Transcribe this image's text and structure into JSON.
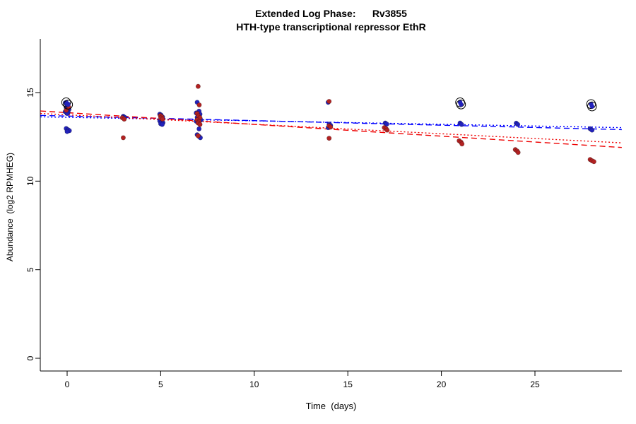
{
  "title": {
    "main": "Extended Log Phase:      Rv3855",
    "subtitle": "HTH-type transcriptional repressor EthR"
  },
  "axes": {
    "x_label": "Time  (days)",
    "y_label": "Abundance  (log2 RPMHEG)"
  },
  "chart_data": {
    "type": "scatter",
    "title": "Extended Log Phase: Rv3855",
    "subtitle": "HTH-type transcriptional repressor EthR",
    "xlabel": "Time (days)",
    "ylabel": "Abundance (log2 RPMHEG)",
    "xlim": [
      -1.43,
      29.64
    ],
    "ylim": [
      -0.72,
      18.03
    ],
    "x_ticks": [
      0,
      5,
      10,
      15,
      20,
      25
    ],
    "y_ticks": [
      0,
      5,
      10,
      15
    ],
    "grid": false,
    "legend": "none",
    "point_colors": {
      "blue": "#2222bb",
      "red": "#b22222"
    },
    "line_colors": {
      "blue": "#0000ff",
      "red": "#ee0000"
    },
    "series": [
      {
        "name": "blue",
        "color": "#2222bb",
        "points": [
          [
            -0.1,
            14.42
          ],
          [
            0.05,
            14.35
          ],
          [
            0,
            14.25
          ],
          [
            -0.05,
            14.15
          ],
          [
            0.1,
            14.05
          ],
          [
            0,
            13.98
          ],
          [
            -0.1,
            13.92
          ],
          [
            0.05,
            13.88
          ],
          [
            0,
            13.82
          ],
          [
            -0.05,
            12.97
          ],
          [
            0.05,
            12.9
          ],
          [
            0.12,
            12.85
          ],
          [
            0,
            12.8
          ],
          [
            3,
            13.66
          ],
          [
            3.08,
            13.6
          ],
          [
            4.95,
            13.78
          ],
          [
            5.02,
            13.73
          ],
          [
            5.1,
            13.62
          ],
          [
            4.95,
            13.4
          ],
          [
            5.05,
            13.34
          ],
          [
            5.12,
            13.3
          ],
          [
            5,
            13.24
          ],
          [
            5.08,
            13.2
          ],
          [
            6.95,
            14.45
          ],
          [
            7.05,
            13.95
          ],
          [
            6.9,
            13.85
          ],
          [
            7.1,
            13.78
          ],
          [
            7,
            13.7
          ],
          [
            6.95,
            13.6
          ],
          [
            7.08,
            13.52
          ],
          [
            7.15,
            13.45
          ],
          [
            6.9,
            13.38
          ],
          [
            7,
            13.3
          ],
          [
            7.05,
            12.95
          ],
          [
            6.95,
            12.62
          ],
          [
            7.05,
            12.52
          ],
          [
            7.12,
            12.45
          ],
          [
            13.95,
            14.45
          ],
          [
            14,
            13.22
          ],
          [
            14.08,
            13.15
          ],
          [
            13.95,
            13.02
          ],
          [
            17,
            13.28
          ],
          [
            17.08,
            13.22
          ],
          [
            21,
            13.28
          ],
          [
            21.08,
            13.2
          ],
          [
            24,
            13.27
          ],
          [
            24.08,
            13.2
          ],
          [
            27.95,
            12.96
          ],
          [
            28.05,
            12.88
          ]
        ]
      },
      {
        "name": "red",
        "color": "#b22222",
        "points": [
          [
            0.08,
            14.18
          ],
          [
            -0.05,
            14.0
          ],
          [
            2.95,
            13.58
          ],
          [
            3.05,
            13.5
          ],
          [
            3,
            12.45
          ],
          [
            4.98,
            13.7
          ],
          [
            5.06,
            13.63
          ],
          [
            5,
            13.56
          ],
          [
            5.1,
            13.5
          ],
          [
            7,
            15.35
          ],
          [
            7.06,
            14.3
          ],
          [
            6.95,
            13.82
          ],
          [
            7.02,
            13.68
          ],
          [
            7.1,
            13.58
          ],
          [
            6.95,
            13.46
          ],
          [
            7.05,
            13.36
          ],
          [
            7,
            13.28
          ],
          [
            7.1,
            13.2
          ],
          [
            7,
            12.56
          ],
          [
            14,
            14.5
          ],
          [
            14,
            13.12
          ],
          [
            14.08,
            13.05
          ],
          [
            14,
            12.42
          ],
          [
            16.95,
            13.02
          ],
          [
            17.05,
            12.95
          ],
          [
            17.1,
            12.88
          ],
          [
            20.95,
            12.28
          ],
          [
            21.05,
            12.2
          ],
          [
            21.1,
            12.1
          ],
          [
            23.95,
            11.78
          ],
          [
            24.05,
            11.7
          ],
          [
            24.1,
            11.62
          ],
          [
            27.95,
            11.22
          ],
          [
            28.05,
            11.15
          ],
          [
            28.15,
            11.1
          ]
        ]
      }
    ],
    "outliers_circled": [
      {
        "x": -0.05,
        "y": 14.45,
        "color": "#2222bb"
      },
      {
        "x": 0.05,
        "y": 14.32,
        "color": "#2222bb"
      },
      {
        "x": 21,
        "y": 14.45,
        "color": "#2222bb"
      },
      {
        "x": 21.05,
        "y": 14.33,
        "color": "#2222bb"
      },
      {
        "x": 28,
        "y": 14.35,
        "color": "#2222bb"
      },
      {
        "x": 28.05,
        "y": 14.22,
        "color": "#2222bb"
      }
    ],
    "trend_lines": [
      {
        "name": "blue-fit-dashed",
        "color": "#0000ff",
        "dash": "8,5",
        "x1": -1.43,
        "y1": 13.71,
        "x2": 29.64,
        "y2": 12.91
      },
      {
        "name": "blue-fit-dotted",
        "color": "#0000ff",
        "dash": "2,3",
        "x1": -1.43,
        "y1": 13.63,
        "x2": 29.64,
        "y2": 13.02
      },
      {
        "name": "red-fit-dashed",
        "color": "#ee0000",
        "dash": "8,5",
        "x1": -1.43,
        "y1": 13.96,
        "x2": 29.64,
        "y2": 11.9
      },
      {
        "name": "red-fit-dotted",
        "color": "#ee0000",
        "dash": "2,3",
        "x1": -1.43,
        "y1": 13.82,
        "x2": 29.64,
        "y2": 12.16
      }
    ]
  }
}
